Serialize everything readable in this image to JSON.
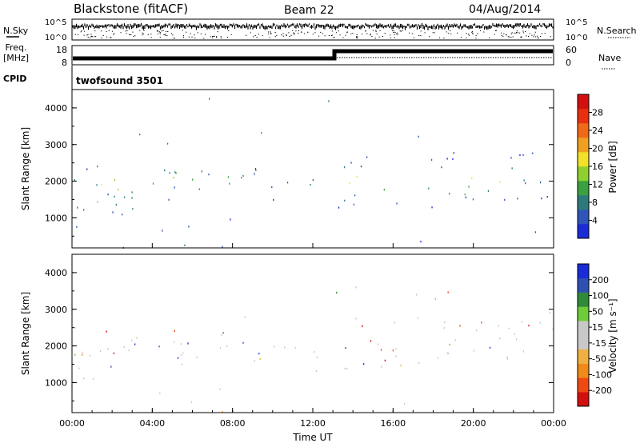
{
  "header": {
    "title": "Blackstone (fitACF)",
    "beam": "Beam 22",
    "date": "04/Aug/2014"
  },
  "left_labels": {
    "nsky": "N.Sky",
    "freq": "Freq.",
    "freq_unit": "[MHz]",
    "cpid": "CPID"
  },
  "right_labels": {
    "nsearch": "N.Search",
    "nave": "Nave"
  },
  "top_panels": {
    "noise_ticks_left": [
      "10^5",
      "10^0"
    ],
    "noise_ticks_right": [
      "10^5",
      "10^0"
    ],
    "freq_ticks": [
      "18",
      "8"
    ],
    "nave_ticks": [
      "60",
      "0"
    ],
    "cpid_text": "twofsound 3501"
  },
  "colors": {
    "power": [
      "#1a2bd8",
      "#2f55b8",
      "#2e7a7a",
      "#3aa040",
      "#8fd030",
      "#f2e02a",
      "#f0a020",
      "#ef6a18",
      "#e8300f",
      "#d21010"
    ],
    "velocity": [
      "#d21010",
      "#ef4a14",
      "#f08a1a",
      "#f0b040",
      "#c8c8c8",
      "#c8c8c8",
      "#6ecc38",
      "#2f8a3a",
      "#2f50b0",
      "#1a2bd8"
    ]
  },
  "chart_data": [
    {
      "type": "heatmap",
      "name": "power",
      "ylabel": "Slant Range [km]",
      "ylim": [
        180,
        4500
      ],
      "xlim": [
        0,
        24
      ],
      "yticks": [
        "1000",
        "2000",
        "3000",
        "4000"
      ],
      "colorbar_label": "Power [dB]",
      "colorbar_ticks": [
        "4",
        "8",
        "12",
        "16",
        "20",
        "24",
        "28"
      ],
      "colorbar_range": [
        0,
        30
      ]
    },
    {
      "type": "heatmap",
      "name": "velocity",
      "ylabel": "Slant Range [km]",
      "ylim": [
        180,
        4500
      ],
      "xlim": [
        0,
        24
      ],
      "yticks": [
        "1000",
        "2000",
        "3000",
        "4000"
      ],
      "xticks": [
        "00:00",
        "04:00",
        "08:00",
        "12:00",
        "16:00",
        "20:00",
        "00:00"
      ],
      "xlabel": "Time UT",
      "colorbar_label": "Velocity [m s⁻¹]",
      "colorbar_ticks": [
        "200",
        "100",
        "50",
        "15",
        "-15",
        "-50",
        "-100",
        "-200"
      ]
    }
  ]
}
